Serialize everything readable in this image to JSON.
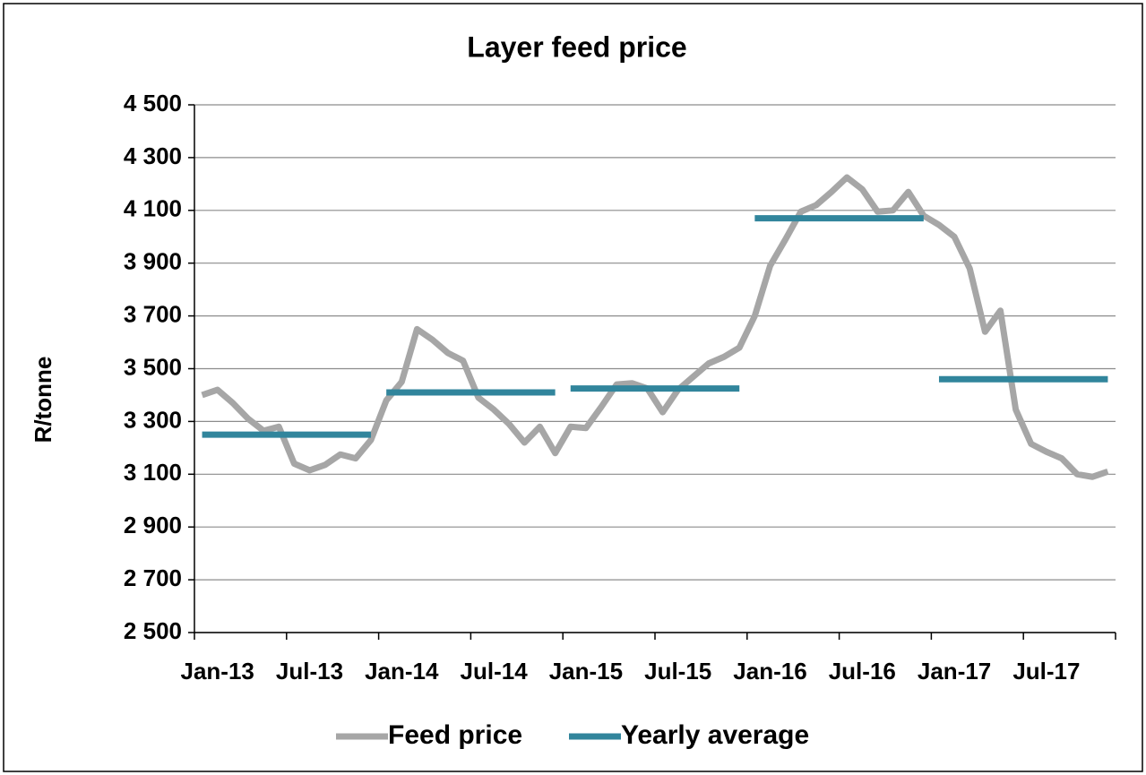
{
  "chart_data": {
    "type": "line",
    "title": "Layer feed price",
    "y_label": "R/tonne",
    "categories": [
      "Jan-13",
      null,
      null,
      null,
      null,
      null,
      "Jul-13",
      null,
      null,
      null,
      null,
      null,
      "Jan-14",
      null,
      null,
      null,
      null,
      null,
      "Jul-14",
      null,
      null,
      null,
      null,
      null,
      "Jan-15",
      null,
      null,
      null,
      null,
      null,
      "Jul-15",
      null,
      null,
      null,
      null,
      null,
      "Jan-16",
      null,
      null,
      null,
      null,
      null,
      "Jul-16",
      null,
      null,
      null,
      null,
      null,
      "Jan-17",
      null,
      null,
      null,
      null,
      null,
      "Jul-17",
      null,
      null,
      null,
      null,
      null
    ],
    "series": [
      {
        "name": "Feed price",
        "color": "#a6a6a6",
        "values": [
          3400,
          3420,
          3370,
          3310,
          3265,
          3280,
          3140,
          3115,
          3135,
          3175,
          3160,
          3230,
          3380,
          3450,
          3650,
          3610,
          3560,
          3530,
          3390,
          3345,
          3290,
          3220,
          3280,
          3180,
          3280,
          3275,
          3355,
          3440,
          3445,
          3425,
          3335,
          3420,
          3470,
          3520,
          3545,
          3580,
          3700,
          3890,
          3990,
          4095,
          4120,
          4170,
          4225,
          4180,
          4095,
          4100,
          4170,
          4080,
          4045,
          4000,
          3880,
          3640,
          3720,
          3345,
          3215,
          3185,
          3160,
          3100,
          3090,
          3110
        ]
      },
      {
        "name": "Yearly average",
        "color": "#31859c",
        "values": [
          3250,
          3250,
          3250,
          3250,
          3250,
          3250,
          3250,
          3250,
          3250,
          3250,
          3250,
          3250,
          3410,
          3410,
          3410,
          3410,
          3410,
          3410,
          3410,
          3410,
          3410,
          3410,
          3410,
          3410,
          3425,
          3425,
          3425,
          3425,
          3425,
          3425,
          3425,
          3425,
          3425,
          3425,
          3425,
          3425,
          4070,
          4070,
          4070,
          4070,
          4070,
          4070,
          4070,
          4070,
          4070,
          4070,
          4070,
          4070,
          3460,
          3460,
          3460,
          3460,
          3460,
          3460,
          3460,
          3460,
          3460,
          3460,
          3460,
          3460
        ]
      }
    ],
    "ylim": [
      2500,
      4500
    ],
    "yticks": [
      {
        "value": 2500,
        "label": "2 500"
      },
      {
        "value": 2700,
        "label": "2 700"
      },
      {
        "value": 2900,
        "label": "2 900"
      },
      {
        "value": 3100,
        "label": "3 100"
      },
      {
        "value": 3300,
        "label": "3 300"
      },
      {
        "value": 3500,
        "label": "3 500"
      },
      {
        "value": 3700,
        "label": "3 700"
      },
      {
        "value": 3900,
        "label": "3 900"
      },
      {
        "value": 4100,
        "label": "4 100"
      },
      {
        "value": 4300,
        "label": "4 300"
      },
      {
        "value": 4500,
        "label": "4 500"
      }
    ],
    "grid": true,
    "legend": "bottom"
  }
}
